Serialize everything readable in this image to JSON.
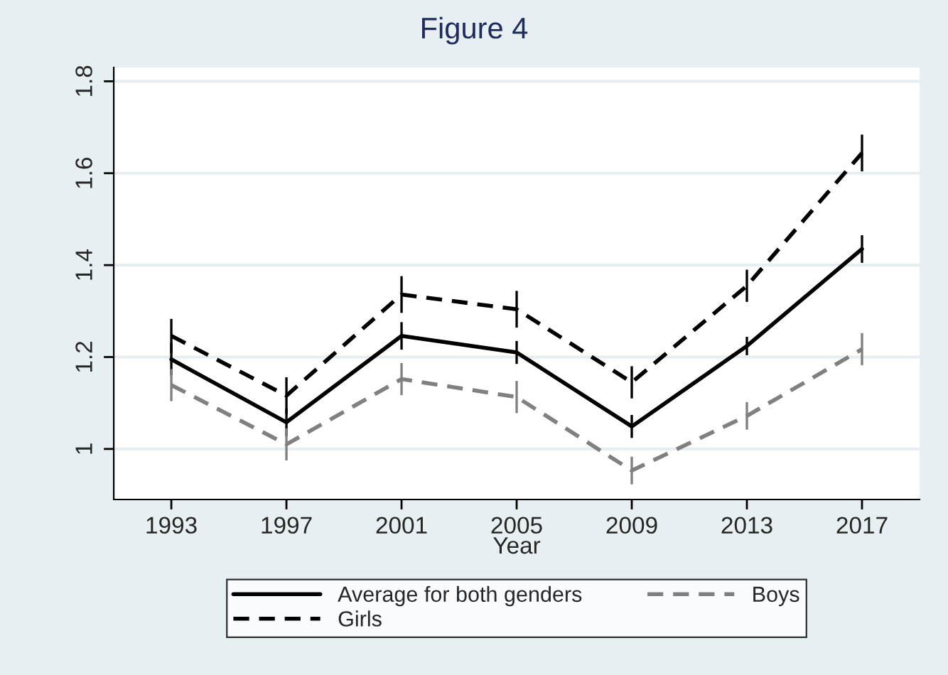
{
  "chart_data": {
    "type": "line",
    "title": "Figure 4",
    "xlabel": "Year",
    "x": [
      1993,
      1997,
      2001,
      2005,
      2009,
      2013,
      2017
    ],
    "series": [
      {
        "name": "Average for both genders",
        "color": "#000000",
        "line_style": "solid",
        "values": [
          1.195,
          1.058,
          1.246,
          1.21,
          1.049,
          1.224,
          1.435
        ],
        "errors": [
          0.035,
          0.03,
          0.03,
          0.025,
          0.025,
          0.02,
          0.03
        ]
      },
      {
        "name": "Girls",
        "color": "#000000",
        "line_style": "dashed",
        "values": [
          1.246,
          1.116,
          1.336,
          1.304,
          1.145,
          1.355,
          1.644
        ],
        "errors": [
          0.037,
          0.04,
          0.04,
          0.04,
          0.035,
          0.035,
          0.04
        ]
      },
      {
        "name": "Boys",
        "color": "#808080",
        "line_style": "dashed",
        "values": [
          1.139,
          1.01,
          1.152,
          1.113,
          0.953,
          1.072,
          1.217
        ],
        "errors": [
          0.035,
          0.035,
          0.035,
          0.035,
          0.03,
          0.03,
          0.035
        ]
      }
    ],
    "xlim": [
      1991,
      2019
    ],
    "ylim": [
      0.89,
      1.83
    ],
    "xticks": [
      1993,
      1997,
      2001,
      2005,
      2009,
      2013,
      2017
    ],
    "yticks": [
      1,
      1.2,
      1.4,
      1.6,
      1.8
    ],
    "grid": "y",
    "legend": "bottom",
    "marker": "none"
  }
}
